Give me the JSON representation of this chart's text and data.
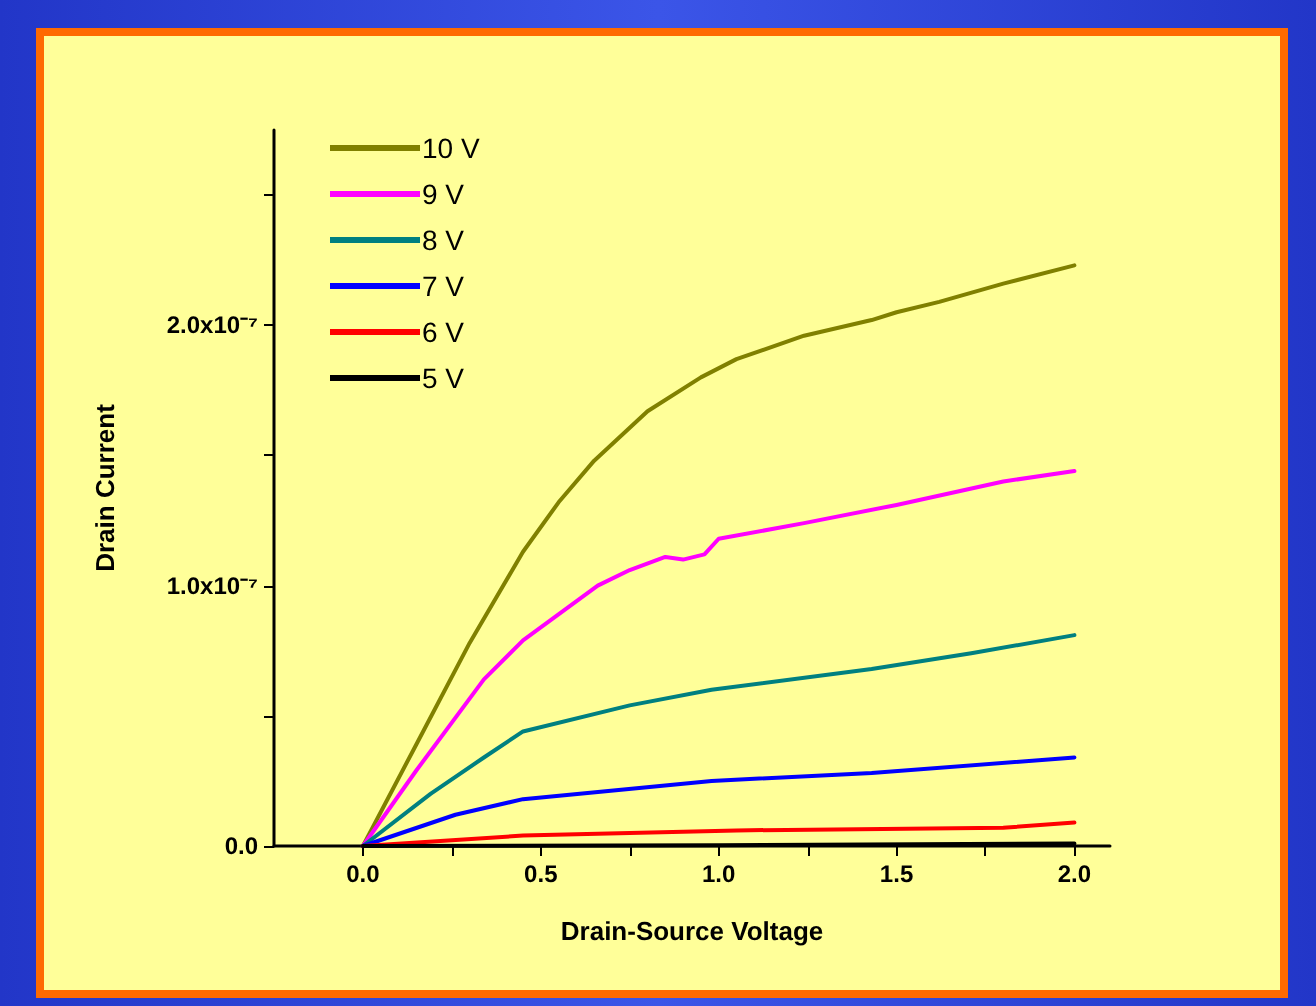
{
  "chart_data": {
    "type": "line",
    "xlabel": "Drain-Source Voltage",
    "ylabel": "Drain Current",
    "xlim": [
      -0.25,
      2.1
    ],
    "xticks": [
      {
        "value": 0,
        "label": "0.0"
      },
      {
        "value": 0.25,
        "label": null
      },
      {
        "value": 0.5,
        "label": "0.5"
      },
      {
        "value": 0.75,
        "label": null
      },
      {
        "value": 1,
        "label": "1.0"
      },
      {
        "value": 1.25,
        "label": null
      },
      {
        "value": 1.5,
        "label": "1.5"
      },
      {
        "value": 1.75,
        "label": null
      },
      {
        "value": 2,
        "label": "2.0"
      }
    ],
    "ylim": [
      0,
      2.75e-07
    ],
    "yticks": [
      {
        "value": 0,
        "label": "0.0"
      },
      {
        "value": 5e-08,
        "label": null
      },
      {
        "value": 1e-07,
        "label": "1.0x10⁻⁷"
      },
      {
        "value": 1.5e-07,
        "label": null
      },
      {
        "value": 2e-07,
        "label": "2.0x10⁻⁷"
      },
      {
        "value": 2.5e-07,
        "label": null
      }
    ],
    "grid": false,
    "legend": "top left",
    "marker": "none",
    "line_style": "solid",
    "series": [
      {
        "name": "10 V",
        "color": "#808000",
        "x": [
          0,
          0.15,
          0.3,
          0.45,
          0.55,
          0.65,
          0.8,
          0.95,
          1.05,
          1.24,
          1.43,
          1.5,
          1.62,
          1.8,
          2.0
        ],
        "values": [
          0,
          3.9e-08,
          7.8e-08,
          1.13e-07,
          1.32e-07,
          1.48e-07,
          1.67e-07,
          1.8e-07,
          1.87e-07,
          1.96e-07,
          2.02e-07,
          2.05e-07,
          2.09e-07,
          2.16e-07,
          2.23e-07
        ]
      },
      {
        "name": "9 V",
        "color": "#ff00ff",
        "x": [
          0,
          0.15,
          0.34,
          0.45,
          0.66,
          0.75,
          0.85,
          0.9,
          0.96,
          1.0,
          1.24,
          1.5,
          1.8,
          2.0
        ],
        "values": [
          0,
          2.9e-08,
          6.4e-08,
          7.9e-08,
          1e-07,
          1.06e-07,
          1.11e-07,
          1.1e-07,
          1.12e-07,
          1.18e-07,
          1.24e-07,
          1.31e-07,
          1.4e-07,
          1.44e-07
        ]
      },
      {
        "name": "8 V",
        "color": "#008080",
        "x": [
          0,
          0.19,
          0.34,
          0.45,
          0.75,
          0.98,
          1.43,
          1.71,
          2.0
        ],
        "values": [
          0,
          2e-08,
          3.4e-08,
          4.4e-08,
          5.4e-08,
          6e-08,
          6.8e-08,
          7.4e-08,
          8.1e-08
        ]
      },
      {
        "name": "7 V",
        "color": "#0000ff",
        "x": [
          0,
          0.26,
          0.45,
          0.98,
          1.43,
          2.0
        ],
        "values": [
          0,
          1.2e-08,
          1.8e-08,
          2.5e-08,
          2.8e-08,
          3.4e-08
        ]
      },
      {
        "name": "6 V",
        "color": "#ff0000",
        "x": [
          0,
          0.45,
          1.05,
          1.8,
          2.0
        ],
        "values": [
          0,
          4e-09,
          6e-09,
          7e-09,
          9e-09
        ]
      },
      {
        "name": "5 V",
        "color": "#000000",
        "x": [
          0,
          1.0,
          2.0
        ],
        "values": [
          0,
          3e-10,
          1e-09
        ]
      }
    ]
  }
}
